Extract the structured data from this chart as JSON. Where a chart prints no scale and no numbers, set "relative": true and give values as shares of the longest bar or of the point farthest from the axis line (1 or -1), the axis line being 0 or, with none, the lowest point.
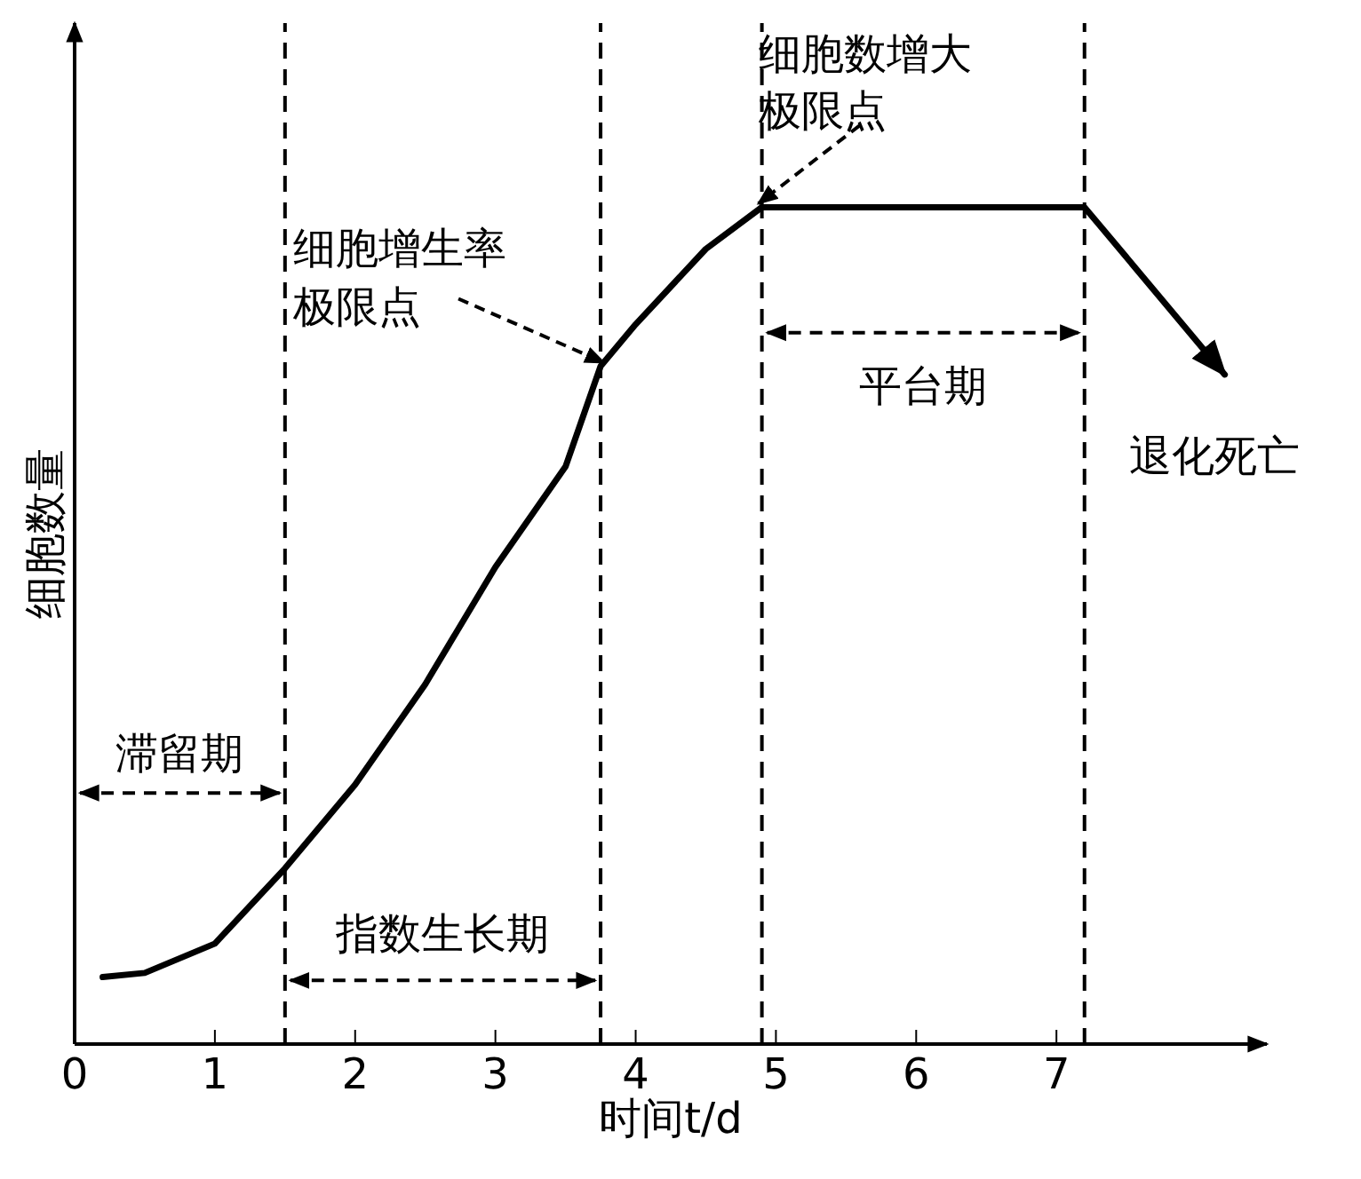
{
  "chart_data": {
    "type": "line",
    "xlabel": "时间t/d",
    "ylabel": "细胞数量",
    "relative": true,
    "tick_labels": "x",
    "marker": "none",
    "line_style": "solid",
    "x": [
      0.2,
      0.5,
      1,
      1.5,
      2,
      2.5,
      3,
      3.5,
      3.75,
      4,
      4.5,
      4.9,
      7.2,
      8.2
    ],
    "series": [
      {
        "color": "#000000",
        "values": [
          0.08,
          0.085,
          0.12,
          0.21,
          0.31,
          0.43,
          0.57,
          0.69,
          0.81,
          0.86,
          0.95,
          1,
          1,
          0.8
        ]
      }
    ],
    "xlim": [
      0,
      8.5
    ],
    "xticks": [
      0,
      1,
      2,
      3,
      4,
      5,
      6,
      7
    ],
    "ref_lines": [
      {
        "axis": "x",
        "value": 1.5,
        "line_style": "dashed"
      },
      {
        "axis": "x",
        "value": 3.75,
        "line_style": "dashed"
      },
      {
        "axis": "x",
        "value": 4.9,
        "line_style": "dashed"
      },
      {
        "axis": "x",
        "value": 7.2,
        "line_style": "dashed"
      }
    ],
    "annotations": [
      "滞留期",
      "指数生长期",
      "平台期",
      {
        "text": "细胞增生率极限点",
        "x": 3.75,
        "y": 0.81
      },
      {
        "text": "细胞数增大极限点",
        "x": 4.9,
        "y": 1
      },
      {
        "text": "退化死亡",
        "x": 8.2,
        "y": 0.8
      }
    ]
  }
}
